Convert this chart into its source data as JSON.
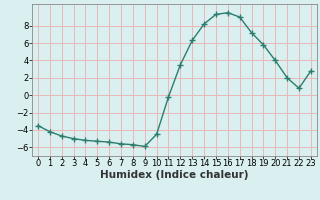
{
  "x": [
    0,
    1,
    2,
    3,
    4,
    5,
    6,
    7,
    8,
    9,
    10,
    11,
    12,
    13,
    14,
    15,
    16,
    17,
    18,
    19,
    20,
    21,
    22,
    23
  ],
  "y": [
    -3.5,
    -4.2,
    -4.7,
    -5.0,
    -5.2,
    -5.3,
    -5.4,
    -5.6,
    -5.7,
    -5.9,
    -4.5,
    -0.2,
    3.5,
    6.3,
    8.2,
    9.3,
    9.5,
    9.0,
    7.2,
    5.8,
    4.0,
    2.0,
    0.8,
    2.8
  ],
  "xlabel": "Humidex (Indice chaleur)",
  "xlim": [
    -0.5,
    23.5
  ],
  "ylim": [
    -7,
    10.5
  ],
  "yticks": [
    -6,
    -4,
    -2,
    0,
    2,
    4,
    6,
    8
  ],
  "xticks": [
    0,
    1,
    2,
    3,
    4,
    5,
    6,
    7,
    8,
    9,
    10,
    11,
    12,
    13,
    14,
    15,
    16,
    17,
    18,
    19,
    20,
    21,
    22,
    23
  ],
  "line_color": "#2d7d6e",
  "marker": "+",
  "marker_size": 4.0,
  "bg_color": "#daf0f0",
  "grid_color": "#e8b8b8",
  "axis_color": "#888888",
  "xlabel_fontsize": 7.5,
  "tick_fontsize": 6.0
}
